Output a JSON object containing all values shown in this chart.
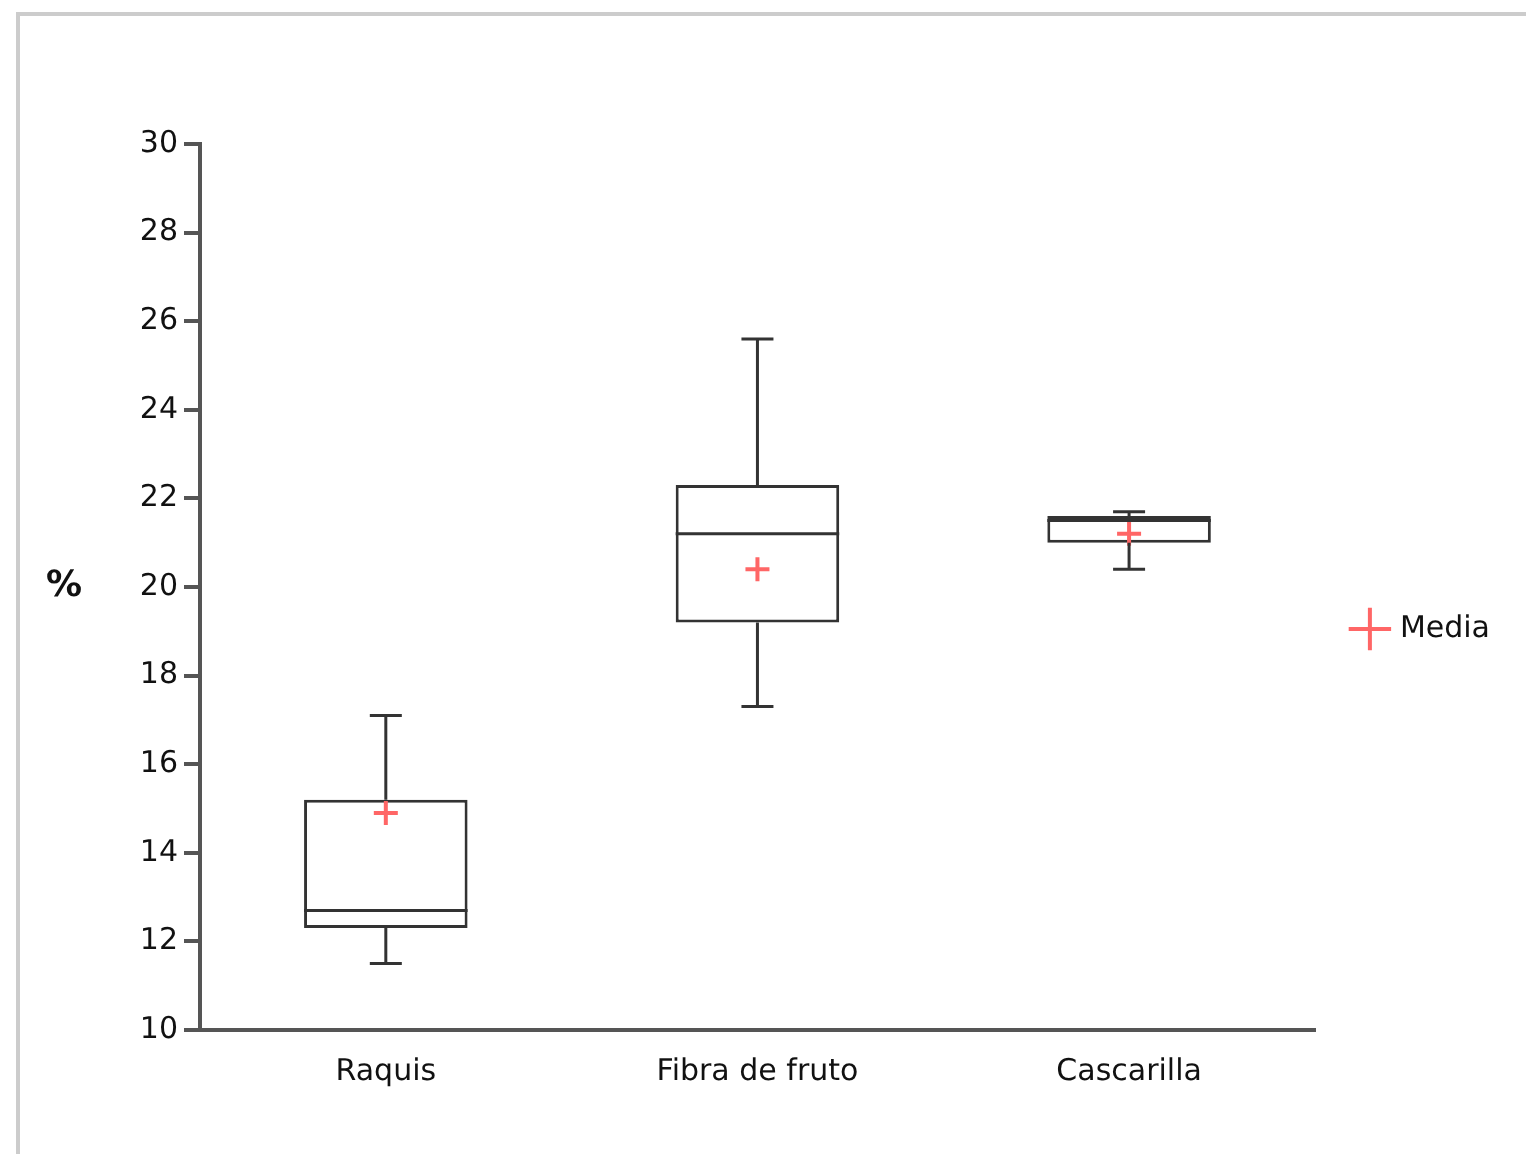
{
  "chart_data": {
    "type": "box",
    "ylabel": "%",
    "categories": [
      "Raquis",
      "Fibra de fruto",
      "Cascarilla"
    ],
    "boxes": [
      {
        "low": 11.5,
        "q1": 12.3,
        "median": 12.7,
        "q3": 15.2,
        "high": 17.1
      },
      {
        "low": 17.3,
        "q1": 19.2,
        "median": 21.2,
        "q3": 22.3,
        "high": 25.6
      },
      {
        "low": 20.4,
        "q1": 21.0,
        "median": 21.5,
        "q3": 21.6,
        "high": 21.7
      }
    ],
    "series": [
      {
        "name": "Media",
        "type": "scatter",
        "color": "#ff6666",
        "marker": "cross",
        "x": [
          "Raquis",
          "Fibra de fruto",
          "Cascarilla"
        ],
        "values": [
          14.9,
          20.4,
          21.2
        ]
      }
    ],
    "ylim": [
      10,
      30
    ],
    "yticks": [
      10,
      12,
      14,
      16,
      18,
      20,
      22,
      24,
      26,
      28,
      30
    ],
    "grid": false,
    "legend": "right"
  }
}
